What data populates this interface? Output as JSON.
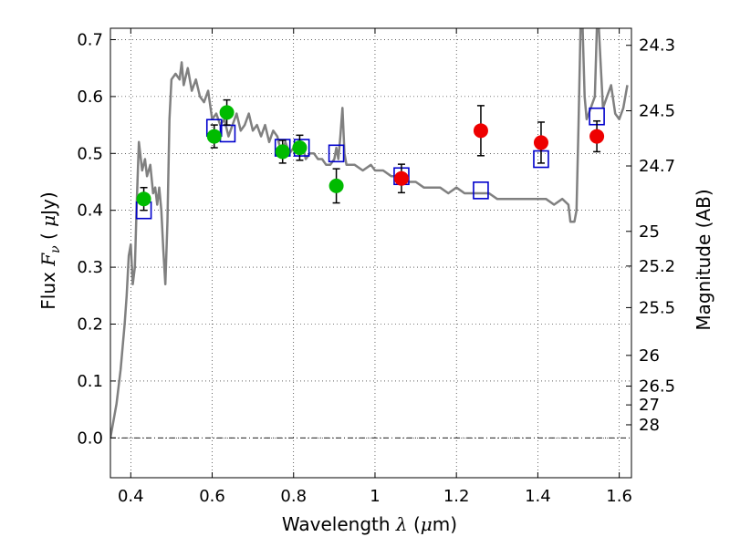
{
  "chart_data": {
    "type": "scatter",
    "xlabel_text": "Wavelength",
    "xlabel_symbol": "λ",
    "xlabel_unit_prefix": "(",
    "xlabel_unit_mu": "μ",
    "xlabel_unit_suffix": "m)",
    "ylabel_text": "Flux",
    "ylabel_symbol": "F",
    "ylabel_subscript": "ν",
    "ylabel_unit_prefix": "(",
    "ylabel_unit_mu": "μ",
    "ylabel_unit_suffix": "Jy)",
    "y2label": "Magnitude (AB)",
    "xlim": [
      0.35,
      1.63
    ],
    "ylim": [
      -0.07,
      0.72
    ],
    "grid": true,
    "xticks": [
      0.4,
      0.6,
      0.8,
      1.0,
      1.2,
      1.4,
      1.6
    ],
    "xtick_labels": [
      "0.4",
      "0.6",
      "0.8",
      "1",
      "1.2",
      "1.4",
      "1.6"
    ],
    "yticks": [
      0.0,
      0.1,
      0.2,
      0.3,
      0.4,
      0.5,
      0.6,
      0.7
    ],
    "ytick_labels": [
      "0.0",
      "0.1",
      "0.2",
      "0.3",
      "0.4",
      "0.5",
      "0.6",
      "0.7"
    ],
    "y2ticks": [
      {
        "label": "24.3",
        "flux": 0.69
      },
      {
        "label": "24.5",
        "flux": 0.575
      },
      {
        "label": "24.7",
        "flux": 0.478
      },
      {
        "label": "25",
        "flux": 0.363
      },
      {
        "label": "25.2",
        "flux": 0.302
      },
      {
        "label": "25.5",
        "flux": 0.229
      },
      {
        "label": "26",
        "flux": 0.145
      },
      {
        "label": "26.5",
        "flux": 0.091
      },
      {
        "label": "27",
        "flux": 0.058
      },
      {
        "label": "28",
        "flux": 0.023
      }
    ],
    "series": [
      {
        "kind": "line",
        "color": "#808080",
        "points": [
          [
            0.35,
            0.0
          ],
          [
            0.365,
            0.06
          ],
          [
            0.375,
            0.12
          ],
          [
            0.385,
            0.2
          ],
          [
            0.39,
            0.25
          ],
          [
            0.395,
            0.32
          ],
          [
            0.4,
            0.34
          ],
          [
            0.405,
            0.27
          ],
          [
            0.41,
            0.3
          ],
          [
            0.415,
            0.42
          ],
          [
            0.42,
            0.52
          ],
          [
            0.428,
            0.47
          ],
          [
            0.435,
            0.49
          ],
          [
            0.44,
            0.46
          ],
          [
            0.448,
            0.48
          ],
          [
            0.455,
            0.43
          ],
          [
            0.46,
            0.44
          ],
          [
            0.465,
            0.41
          ],
          [
            0.47,
            0.44
          ],
          [
            0.475,
            0.4
          ],
          [
            0.48,
            0.33
          ],
          [
            0.485,
            0.27
          ],
          [
            0.49,
            0.38
          ],
          [
            0.495,
            0.56
          ],
          [
            0.5,
            0.63
          ],
          [
            0.51,
            0.64
          ],
          [
            0.52,
            0.63
          ],
          [
            0.525,
            0.66
          ],
          [
            0.53,
            0.62
          ],
          [
            0.54,
            0.65
          ],
          [
            0.55,
            0.61
          ],
          [
            0.56,
            0.63
          ],
          [
            0.57,
            0.6
          ],
          [
            0.58,
            0.59
          ],
          [
            0.59,
            0.61
          ],
          [
            0.6,
            0.56
          ],
          [
            0.61,
            0.57
          ],
          [
            0.62,
            0.55
          ],
          [
            0.63,
            0.56
          ],
          [
            0.64,
            0.53
          ],
          [
            0.65,
            0.55
          ],
          [
            0.66,
            0.57
          ],
          [
            0.67,
            0.54
          ],
          [
            0.68,
            0.55
          ],
          [
            0.69,
            0.57
          ],
          [
            0.7,
            0.54
          ],
          [
            0.71,
            0.55
          ],
          [
            0.72,
            0.53
          ],
          [
            0.73,
            0.55
          ],
          [
            0.74,
            0.52
          ],
          [
            0.75,
            0.54
          ],
          [
            0.76,
            0.53
          ],
          [
            0.77,
            0.5
          ],
          [
            0.78,
            0.52
          ],
          [
            0.79,
            0.5
          ],
          [
            0.8,
            0.51
          ],
          [
            0.81,
            0.5
          ],
          [
            0.82,
            0.52
          ],
          [
            0.83,
            0.49
          ],
          [
            0.84,
            0.5
          ],
          [
            0.85,
            0.5
          ],
          [
            0.86,
            0.49
          ],
          [
            0.87,
            0.49
          ],
          [
            0.88,
            0.48
          ],
          [
            0.89,
            0.48
          ],
          [
            0.9,
            0.49
          ],
          [
            0.905,
            0.51
          ],
          [
            0.91,
            0.49
          ],
          [
            0.915,
            0.53
          ],
          [
            0.92,
            0.58
          ],
          [
            0.925,
            0.5
          ],
          [
            0.93,
            0.48
          ],
          [
            0.95,
            0.48
          ],
          [
            0.97,
            0.47
          ],
          [
            0.99,
            0.48
          ],
          [
            1.0,
            0.47
          ],
          [
            1.02,
            0.47
          ],
          [
            1.04,
            0.46
          ],
          [
            1.06,
            0.46
          ],
          [
            1.08,
            0.45
          ],
          [
            1.1,
            0.45
          ],
          [
            1.12,
            0.44
          ],
          [
            1.14,
            0.44
          ],
          [
            1.16,
            0.44
          ],
          [
            1.18,
            0.43
          ],
          [
            1.2,
            0.44
          ],
          [
            1.22,
            0.43
          ],
          [
            1.24,
            0.43
          ],
          [
            1.26,
            0.43
          ],
          [
            1.28,
            0.43
          ],
          [
            1.3,
            0.42
          ],
          [
            1.32,
            0.42
          ],
          [
            1.34,
            0.42
          ],
          [
            1.36,
            0.42
          ],
          [
            1.38,
            0.42
          ],
          [
            1.4,
            0.42
          ],
          [
            1.42,
            0.42
          ],
          [
            1.44,
            0.41
          ],
          [
            1.46,
            0.42
          ],
          [
            1.475,
            0.41
          ],
          [
            1.48,
            0.38
          ],
          [
            1.49,
            0.38
          ],
          [
            1.495,
            0.4
          ],
          [
            1.5,
            0.55
          ],
          [
            1.505,
            0.72
          ],
          [
            1.51,
            0.72
          ],
          [
            1.515,
            0.6
          ],
          [
            1.52,
            0.56
          ],
          [
            1.53,
            0.58
          ],
          [
            1.54,
            0.6
          ],
          [
            1.545,
            0.72
          ],
          [
            1.55,
            0.72
          ],
          [
            1.555,
            0.65
          ],
          [
            1.56,
            0.58
          ],
          [
            1.57,
            0.6
          ],
          [
            1.58,
            0.62
          ],
          [
            1.59,
            0.57
          ],
          [
            1.6,
            0.56
          ],
          [
            1.61,
            0.58
          ],
          [
            1.62,
            0.62
          ]
        ]
      },
      {
        "kind": "open-square",
        "color": "#0000cc",
        "points": [
          [
            0.432,
            0.4
          ],
          [
            0.605,
            0.545
          ],
          [
            0.638,
            0.535
          ],
          [
            0.773,
            0.51
          ],
          [
            0.82,
            0.51
          ],
          [
            0.905,
            0.5
          ],
          [
            1.065,
            0.46
          ],
          [
            1.26,
            0.435
          ],
          [
            1.408,
            0.49
          ],
          [
            1.545,
            0.565
          ]
        ]
      },
      {
        "kind": "filled-circle",
        "color": "#00bb00",
        "points": [
          {
            "x": 0.432,
            "y": 0.42,
            "err": 0.02
          },
          {
            "x": 0.605,
            "y": 0.53,
            "err": 0.02
          },
          {
            "x": 0.636,
            "y": 0.572,
            "err": 0.022
          },
          {
            "x": 0.773,
            "y": 0.503,
            "err": 0.02
          },
          {
            "x": 0.815,
            "y": 0.51,
            "err": 0.022
          },
          {
            "x": 0.905,
            "y": 0.443,
            "err": 0.03
          }
        ]
      },
      {
        "kind": "filled-circle",
        "color": "#ee0000",
        "points": [
          {
            "x": 1.065,
            "y": 0.456,
            "err": 0.025
          },
          {
            "x": 1.26,
            "y": 0.54,
            "err": 0.044
          },
          {
            "x": 1.408,
            "y": 0.519,
            "err": 0.036
          },
          {
            "x": 1.545,
            "y": 0.53,
            "err": 0.027
          }
        ]
      }
    ]
  }
}
